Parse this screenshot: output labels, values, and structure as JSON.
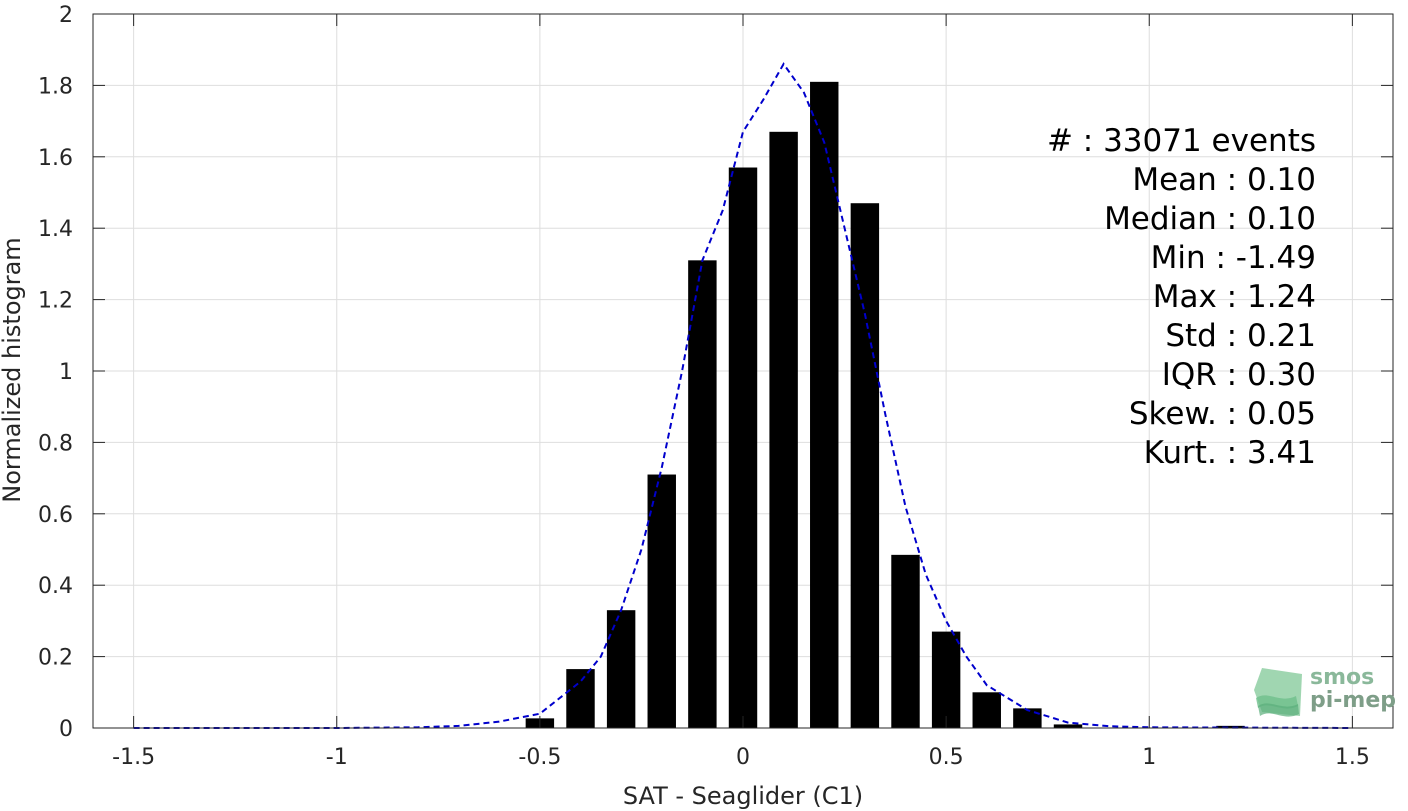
{
  "chart_data": {
    "type": "bar",
    "title": "",
    "xlabel": "SAT - Seaglider (C1)",
    "ylabel": "Normalized histogram",
    "xlim": [
      -1.6,
      1.6
    ],
    "ylim": [
      0,
      2
    ],
    "grid": true,
    "xticks": [
      "-1.5",
      "-1",
      "-0.5",
      "0",
      "0.5",
      "1",
      "1.5"
    ],
    "yticks": [
      "0",
      "0.2",
      "0.4",
      "0.6",
      "0.8",
      "1",
      "1.2",
      "1.4",
      "1.6",
      "1.8",
      "2"
    ],
    "bar_width": 0.07,
    "bars": [
      {
        "x": -0.5,
        "y": 0.027
      },
      {
        "x": -0.4,
        "y": 0.165
      },
      {
        "x": -0.3,
        "y": 0.33
      },
      {
        "x": -0.2,
        "y": 0.71
      },
      {
        "x": -0.1,
        "y": 1.31
      },
      {
        "x": 0.0,
        "y": 1.57
      },
      {
        "x": 0.1,
        "y": 1.67
      },
      {
        "x": 0.2,
        "y": 1.81
      },
      {
        "x": 0.3,
        "y": 1.47
      },
      {
        "x": 0.4,
        "y": 0.485
      },
      {
        "x": 0.5,
        "y": 0.27
      },
      {
        "x": 0.6,
        "y": 0.1
      },
      {
        "x": 0.7,
        "y": 0.055
      },
      {
        "x": 0.8,
        "y": 0.01
      },
      {
        "x": 1.2,
        "y": 0.006
      }
    ],
    "fit_line": {
      "color": "#0000cc",
      "style": "dashed",
      "x": [
        -1.5,
        -1.0,
        -0.8,
        -0.7,
        -0.6,
        -0.5,
        -0.4,
        -0.35,
        -0.3,
        -0.25,
        -0.2,
        -0.15,
        -0.1,
        -0.05,
        0.0,
        0.05,
        0.1,
        0.15,
        0.2,
        0.25,
        0.3,
        0.35,
        0.4,
        0.45,
        0.5,
        0.55,
        0.6,
        0.7,
        0.8,
        0.9,
        1.0,
        1.5
      ],
      "y": [
        0.0,
        0.0,
        0.002,
        0.006,
        0.018,
        0.04,
        0.13,
        0.2,
        0.33,
        0.5,
        0.73,
        1.0,
        1.31,
        1.45,
        1.67,
        1.76,
        1.86,
        1.78,
        1.64,
        1.4,
        1.16,
        0.88,
        0.62,
        0.43,
        0.3,
        0.2,
        0.12,
        0.05,
        0.015,
        0.005,
        0.002,
        0.0
      ]
    },
    "bar_color": "#000000",
    "stats": [
      {
        "label": "#  : 33071 events"
      },
      {
        "label": "Mean : 0.10"
      },
      {
        "label": "Median : 0.10"
      },
      {
        "label": "Min : -1.49"
      },
      {
        "label": "Max : 1.24"
      },
      {
        "label": "Std : 0.21"
      },
      {
        "label": "IQR : 0.30"
      },
      {
        "label": "Skew. : 0.05"
      },
      {
        "label": "Kurt. : 3.41"
      }
    ]
  },
  "logo": {
    "line1": "smos",
    "line2": "pi-mep"
  }
}
